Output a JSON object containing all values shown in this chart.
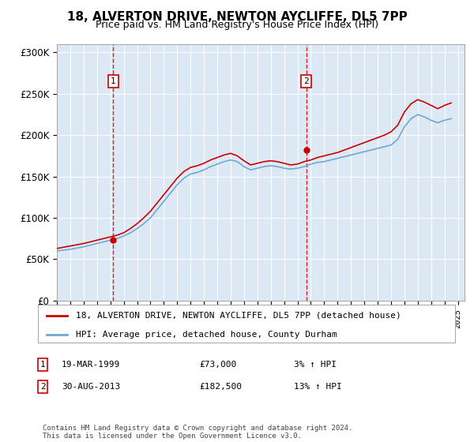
{
  "title1": "18, ALVERTON DRIVE, NEWTON AYCLIFFE, DL5 7PP",
  "title2": "Price paid vs. HM Land Registry's House Price Index (HPI)",
  "ylabel": "",
  "background_color": "#dce9f5",
  "plot_bg_color": "#dce9f5",
  "legend_line1": "18, ALVERTON DRIVE, NEWTON AYCLIFFE, DL5 7PP (detached house)",
  "legend_line2": "HPI: Average price, detached house, County Durham",
  "note1": "1   19-MAR-1999          £73,000          3% ↑ HPI",
  "note2": "2   30-AUG-2013          £182,500        13% ↑ HPI",
  "footer": "Contains HM Land Registry data © Crown copyright and database right 2024.\nThis data is licensed under the Open Government Licence v3.0.",
  "sale1_date": 1999.21,
  "sale1_price": 73000,
  "sale2_date": 2013.66,
  "sale2_price": 182500,
  "ylim": [
    0,
    310000
  ],
  "xlim_start": 1995.0,
  "xlim_end": 2025.5,
  "hpi_color": "#6fa8d4",
  "price_color": "#cc0000",
  "vline_color": "#cc0000",
  "marker_color": "#cc0000"
}
